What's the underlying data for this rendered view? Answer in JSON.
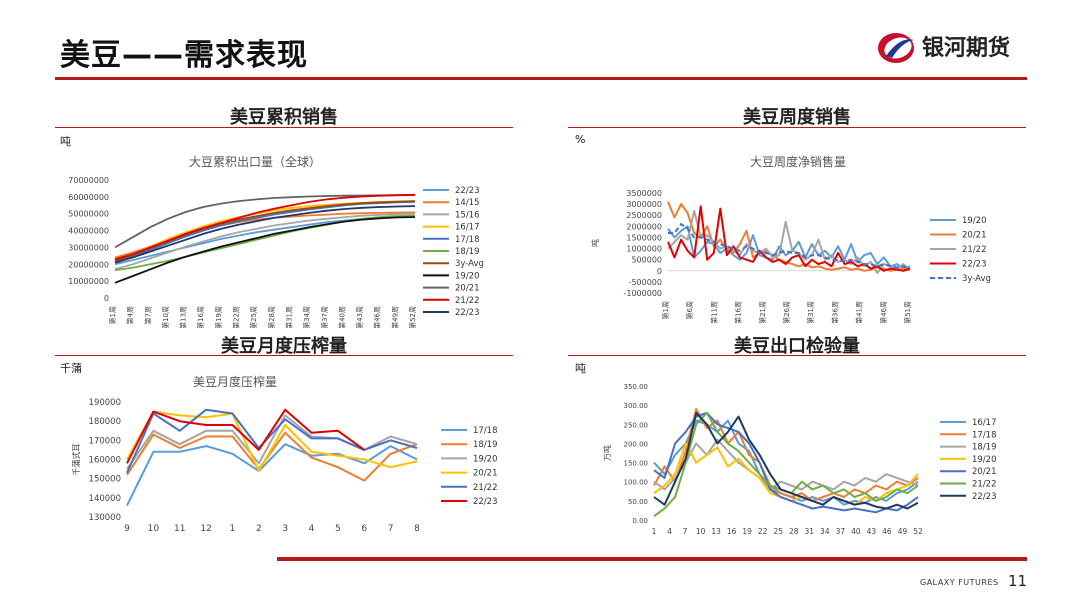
{
  "header": {
    "title": "美豆——需求表现",
    "brand": "银河期货"
  },
  "footer": {
    "company": "GALAXY FUTURES",
    "page": "11"
  },
  "colors": {
    "accent": "#b31b1b"
  },
  "panels": {
    "p1": {
      "section_title": "美豆累积销售",
      "unit": "吨"
    },
    "p2": {
      "section_title": "美豆周度销售",
      "unit": "%"
    },
    "p3": {
      "section_title": "美豆月度压榨量",
      "unit": "千蒲"
    },
    "p4": {
      "section_title": "美豆出口检验量",
      "unit": "吨"
    }
  },
  "chart_data": [
    {
      "id": "c1",
      "type": "line",
      "title": "大豆累积出口量（全球）",
      "xlabel": "",
      "ylabel": "",
      "ylim": [
        0,
        70000000
      ],
      "yticks": [
        "0",
        "10000000",
        "20000000",
        "30000000",
        "40000000",
        "50000000",
        "60000000",
        "70000000"
      ],
      "xticks": [
        "第1周",
        "第4周",
        "第7周",
        "第10周",
        "第13周",
        "第16周",
        "第19周",
        "第22周",
        "第25周",
        "第28周",
        "第31周",
        "第34周",
        "第37周",
        "第40周",
        "第43周",
        "第46周",
        "第49周",
        "第52周"
      ],
      "series": [
        {
          "name": "22/23",
          "color": "#5b9bd5",
          "values": [
            20000000,
            22500000,
            25000000,
            27500000,
            30000000,
            32500000,
            35000000,
            37000000,
            39000000,
            40500000,
            42000000,
            43500000,
            45000000,
            46000000,
            47000000,
            47800000,
            48300000,
            48600000
          ]
        },
        {
          "name": "14/15",
          "color": "#ed7d31",
          "values": [
            24000000,
            27000000,
            30500000,
            34000000,
            37500000,
            40500000,
            43000000,
            45000000,
            46500000,
            47500000,
            48300000,
            49000000,
            49500000,
            50000000,
            50300000,
            50500000,
            50700000,
            50800000
          ]
        },
        {
          "name": "15/16",
          "color": "#a5a5a5",
          "values": [
            17000000,
            20000000,
            23500000,
            27000000,
            30500000,
            33500000,
            36500000,
            39000000,
            41000000,
            43000000,
            44500000,
            46000000,
            47000000,
            48000000,
            48800000,
            49300000,
            49700000,
            50000000
          ]
        },
        {
          "name": "16/17",
          "color": "#ffc000",
          "values": [
            22000000,
            26000000,
            30500000,
            35000000,
            39000000,
            42500000,
            45500000,
            48000000,
            50000000,
            52000000,
            53500000,
            54500000,
            55300000,
            56000000,
            56500000,
            57000000,
            57300000,
            57500000
          ]
        },
        {
          "name": "17/18",
          "color": "#4472c4",
          "values": [
            21000000,
            24500000,
            28500000,
            32500000,
            36500000,
            40000000,
            43000000,
            45500000,
            47500000,
            49500000,
            51000000,
            52500000,
            53800000,
            55000000,
            55800000,
            56300000,
            56700000,
            57000000
          ]
        },
        {
          "name": "18/19",
          "color": "#70ad47",
          "values": [
            16500000,
            18000000,
            20000000,
            22000000,
            24500000,
            27000000,
            29500000,
            32000000,
            34500000,
            37000000,
            39500000,
            41500000,
            43500000,
            45500000,
            47000000,
            48000000,
            48500000,
            48800000
          ]
        },
        {
          "name": "3y-Avg",
          "color": "#9e480e",
          "values": [
            22000000,
            25500000,
            29500000,
            33500000,
            37500000,
            41000000,
            44000000,
            46500000,
            48500000,
            50500000,
            52000000,
            53300000,
            54500000,
            55500000,
            56300000,
            56800000,
            57200000,
            57400000
          ]
        },
        {
          "name": "19/20",
          "color": "#111111",
          "values": [
            9000000,
            13000000,
            17000000,
            21000000,
            24500000,
            27500000,
            30500000,
            33000000,
            35500000,
            38000000,
            40000000,
            42000000,
            43800000,
            45300000,
            46500000,
            47300000,
            47800000,
            48000000
          ]
        },
        {
          "name": "20/21",
          "color": "#636363",
          "values": [
            30000000,
            36000000,
            42000000,
            47000000,
            51000000,
            54000000,
            56000000,
            57500000,
            58500000,
            59300000,
            59800000,
            60200000,
            60500000,
            60700000,
            60800000,
            60900000,
            61000000,
            61100000
          ]
        },
        {
          "name": "21/22",
          "color": "#e00000",
          "values": [
            23000000,
            26000000,
            30000000,
            34000000,
            38000000,
            41500000,
            44500000,
            47500000,
            50500000,
            53000000,
            55000000,
            57000000,
            58500000,
            59500000,
            60200000,
            60700000,
            61000000,
            61200000
          ]
        },
        {
          "name": "22/23",
          "color": "#203864",
          "values": [
            21000000,
            24000000,
            27500000,
            31000000,
            34500000,
            38000000,
            41000000,
            43500000,
            45500000,
            47500000,
            49000000,
            50500000,
            51800000,
            52800000,
            53500000,
            54000000,
            54300000,
            54500000
          ]
        }
      ]
    },
    {
      "id": "c2",
      "type": "line",
      "title": "大豆周度净销售量",
      "xlabel": "",
      "ylabel": "吨",
      "ylim": [
        -1000000,
        3500000
      ],
      "yticks": [
        "-1000000",
        "-500000",
        "0",
        "500000",
        "1000000",
        "1500000",
        "2000000",
        "2500000",
        "3000000",
        "3500000"
      ],
      "xticks": [
        "第1周",
        "第6周",
        "第11周",
        "第16周",
        "第21周",
        "第26周",
        "第31周",
        "第36周",
        "第41周",
        "第46周",
        "第51周"
      ],
      "series": [
        {
          "name": "19/20",
          "color": "#5b9bd5",
          "dash": false,
          "values": [
            1900000,
            1500000,
            1800000,
            2000000,
            600000,
            900000,
            1300000,
            1200000,
            800000,
            1000000,
            700000,
            500000,
            800000,
            1600000,
            700000,
            600000,
            500000,
            1100000,
            700000,
            900000,
            1300000,
            600000,
            1200000,
            700000,
            900000,
            600000,
            1100000,
            500000,
            1200000,
            400000,
            700000,
            800000,
            300000,
            600000,
            200000,
            300000,
            100000,
            200000
          ]
        },
        {
          "name": "20/21",
          "color": "#ed7d31",
          "dash": false,
          "values": [
            3100000,
            2400000,
            3000000,
            2600000,
            1700000,
            1500000,
            2000000,
            1100000,
            1400000,
            900000,
            800000,
            1200000,
            1800000,
            600000,
            800000,
            900000,
            700000,
            500000,
            400000,
            300000,
            200000,
            300000,
            150000,
            200000,
            100000,
            50000,
            100000,
            150000,
            50000,
            100000,
            0,
            50000,
            150000,
            100000,
            0,
            50000,
            100000,
            50000
          ]
        },
        {
          "name": "21/22",
          "color": "#a5a5a5",
          "dash": false,
          "values": [
            1000000,
            1300000,
            1600000,
            1400000,
            2700000,
            1500000,
            1600000,
            1300000,
            1000000,
            1100000,
            900000,
            700000,
            1200000,
            900000,
            800000,
            1000000,
            600000,
            700000,
            2200000,
            900000,
            800000,
            500000,
            700000,
            1400000,
            500000,
            700000,
            400000,
            500000,
            300000,
            600000,
            200000,
            400000,
            -100000,
            300000,
            200000,
            100000,
            300000,
            0
          ]
        },
        {
          "name": "22/23",
          "color": "#e00000",
          "dash": false,
          "values": [
            1300000,
            600000,
            1400000,
            900000,
            600000,
            2900000,
            500000,
            800000,
            2800000,
            700000,
            1100000,
            600000,
            500000,
            400000,
            900000,
            600000,
            400000,
            500000,
            300000,
            600000,
            700000,
            200000,
            500000,
            300000,
            400000,
            200000,
            800000,
            300000,
            400000,
            200000,
            300000,
            100000,
            200000,
            0,
            100000,
            50000,
            0,
            100000
          ]
        },
        {
          "name": "3y-Avg",
          "color": "#4472c4",
          "dash": true,
          "values": [
            1700000,
            1700000,
            2100000,
            1900000,
            1500000,
            1500000,
            1400000,
            1300000,
            1200000,
            1100000,
            1000000,
            900000,
            1100000,
            1000000,
            800000,
            800000,
            700000,
            800000,
            900000,
            800000,
            800000,
            600000,
            700000,
            700000,
            600000,
            500000,
            500000,
            400000,
            500000,
            400000,
            300000,
            300000,
            200000,
            300000,
            200000,
            150000,
            200000,
            100000
          ]
        }
      ]
    },
    {
      "id": "c3",
      "type": "line",
      "title": "美豆月度压榨量",
      "xlabel": "",
      "ylabel": "千蒲式耳",
      "ylim": [
        130000,
        190000
      ],
      "yticks": [
        "130000",
        "140000",
        "150000",
        "160000",
        "170000",
        "180000",
        "190000"
      ],
      "categories": [
        "9",
        "10",
        "11",
        "12",
        "1",
        "2",
        "3",
        "4",
        "5",
        "6",
        "7",
        "8"
      ],
      "series": [
        {
          "name": "17/18",
          "color": "#5b9bd5",
          "values": [
            136000,
            164000,
            164000,
            167000,
            163000,
            154000,
            168000,
            162000,
            163000,
            158000,
            167000,
            160000
          ]
        },
        {
          "name": "18/19",
          "color": "#ed7d31",
          "values": [
            152000,
            173000,
            166000,
            172000,
            172000,
            155000,
            174000,
            161000,
            156000,
            149000,
            163000,
            168000
          ]
        },
        {
          "name": "19/20",
          "color": "#a5a5a5",
          "values": [
            155000,
            175000,
            168000,
            175000,
            175000,
            158000,
            183000,
            172000,
            171000,
            165000,
            172000,
            168000
          ]
        },
        {
          "name": "20/21",
          "color": "#ffc000",
          "values": [
            160000,
            185000,
            183000,
            182000,
            184000,
            154000,
            178000,
            164000,
            162000,
            160000,
            156000,
            159000
          ]
        },
        {
          "name": "21/22",
          "color": "#4472c4",
          "values": [
            153000,
            184000,
            175000,
            186000,
            184000,
            166000,
            181000,
            171000,
            171000,
            165000,
            170000,
            166000
          ]
        },
        {
          "name": "22/23",
          "color": "#e00000",
          "values": [
            158000,
            185000,
            180000,
            178000,
            178000,
            165000,
            186000,
            174000,
            175000,
            165000,
            null,
            null
          ]
        }
      ]
    },
    {
      "id": "c4",
      "type": "line",
      "title": "",
      "xlabel": "",
      "ylabel": "万吨",
      "ylim": [
        0,
        350
      ],
      "yticks": [
        "0.00",
        "50.00",
        "100.00",
        "150.00",
        "200.00",
        "250.00",
        "300.00",
        "350.00"
      ],
      "xticks": [
        "1",
        "4",
        "7",
        "10",
        "13",
        "16",
        "19",
        "22",
        "25",
        "28",
        "31",
        "34",
        "37",
        "40",
        "43",
        "46",
        "49",
        "52"
      ],
      "series": [
        {
          "name": "16/17",
          "color": "#5b9bd5",
          "values": [
            150,
            120,
            170,
            200,
            260,
            250,
            230,
            260,
            200,
            180,
            120,
            80,
            70,
            60,
            50,
            60,
            50,
            60,
            40,
            50,
            45,
            60,
            50,
            70,
            80,
            100
          ]
        },
        {
          "name": "17/18",
          "color": "#ed7d31",
          "values": [
            90,
            140,
            100,
            180,
            290,
            240,
            260,
            200,
            230,
            170,
            150,
            90,
            70,
            60,
            70,
            50,
            60,
            70,
            60,
            80,
            70,
            90,
            80,
            100,
            90,
            110
          ]
        },
        {
          "name": "18/19",
          "color": "#a5a5a5",
          "values": [
            100,
            80,
            110,
            150,
            200,
            170,
            210,
            180,
            150,
            130,
            110,
            80,
            100,
            90,
            80,
            100,
            90,
            80,
            100,
            90,
            110,
            100,
            120,
            110,
            100,
            90
          ]
        },
        {
          "name": "19/20",
          "color": "#ffc000",
          "values": [
            70,
            90,
            120,
            200,
            150,
            170,
            190,
            140,
            160,
            130,
            110,
            70,
            60,
            50,
            60,
            50,
            40,
            60,
            50,
            40,
            60,
            50,
            70,
            80,
            90,
            120
          ]
        },
        {
          "name": "20/21",
          "color": "#4472c4",
          "values": [
            130,
            110,
            200,
            230,
            270,
            280,
            250,
            240,
            230,
            200,
            150,
            80,
            60,
            50,
            40,
            30,
            35,
            30,
            25,
            30,
            25,
            20,
            30,
            25,
            40,
            60
          ]
        },
        {
          "name": "21/22",
          "color": "#70ad47",
          "values": [
            10,
            30,
            60,
            150,
            250,
            280,
            230,
            200,
            180,
            150,
            120,
            90,
            80,
            70,
            100,
            80,
            90,
            70,
            80,
            60,
            70,
            50,
            60,
            80,
            70,
            90
          ]
        },
        {
          "name": "22/23",
          "color": "#203864",
          "values": [
            60,
            40,
            100,
            160,
            280,
            250,
            200,
            230,
            270,
            210,
            170,
            120,
            80,
            70,
            60,
            50,
            40,
            60,
            50,
            40,
            45,
            35,
            30,
            40,
            30,
            45
          ]
        }
      ]
    }
  ]
}
